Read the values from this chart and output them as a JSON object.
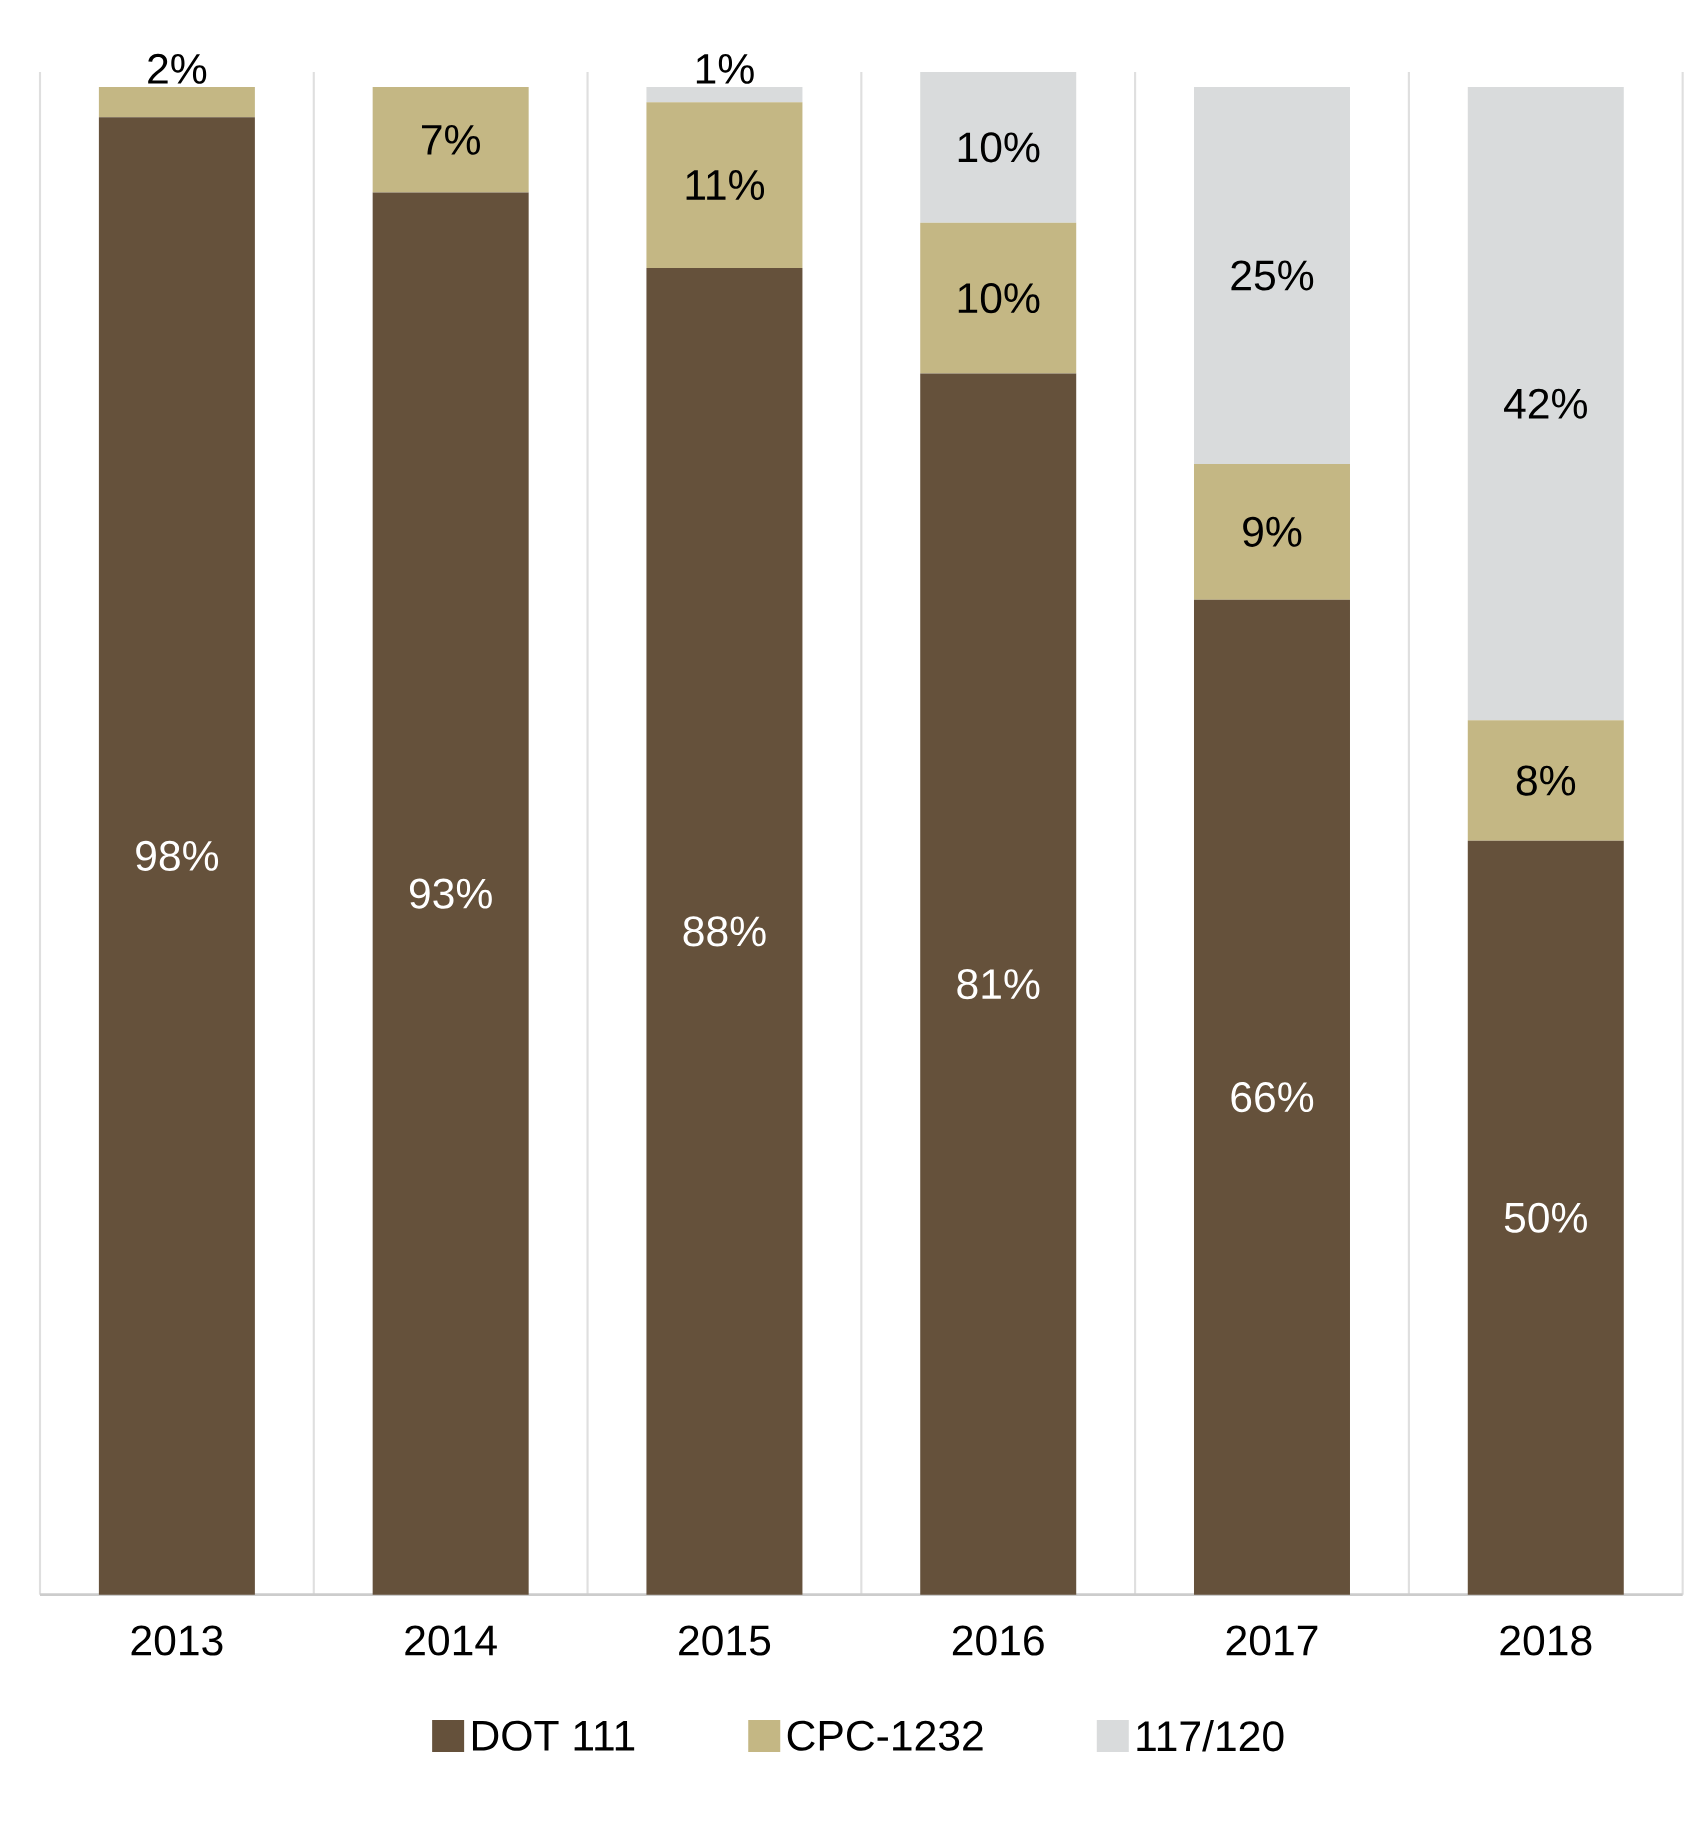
{
  "chart_data": {
    "type": "bar",
    "stacked": true,
    "categories": [
      "2013",
      "2014",
      "2015",
      "2016",
      "2017",
      "2018"
    ],
    "series": [
      {
        "name": "DOT 111",
        "color": "#65513b",
        "values": [
          98,
          93,
          88,
          81,
          66,
          50
        ],
        "value_labels": [
          "98%",
          "93%",
          "88%",
          "81%",
          "66%",
          "50%"
        ]
      },
      {
        "name": "CPC-1232",
        "color": "#c4b784",
        "values": [
          2,
          7,
          11,
          10,
          9,
          8
        ],
        "value_labels": [
          "2%",
          "7%",
          "11%",
          "10%",
          "9%",
          "8%"
        ]
      },
      {
        "name": "117/120",
        "color": "#d9dbdc",
        "values": [
          null,
          null,
          1,
          10,
          25,
          42
        ],
        "value_labels": [
          null,
          null,
          "1%",
          "10%",
          "25%",
          "42%"
        ]
      }
    ],
    "ylim": [
      0,
      101
    ],
    "tick_labels": "x",
    "grid": "x",
    "legend": "bottom"
  }
}
